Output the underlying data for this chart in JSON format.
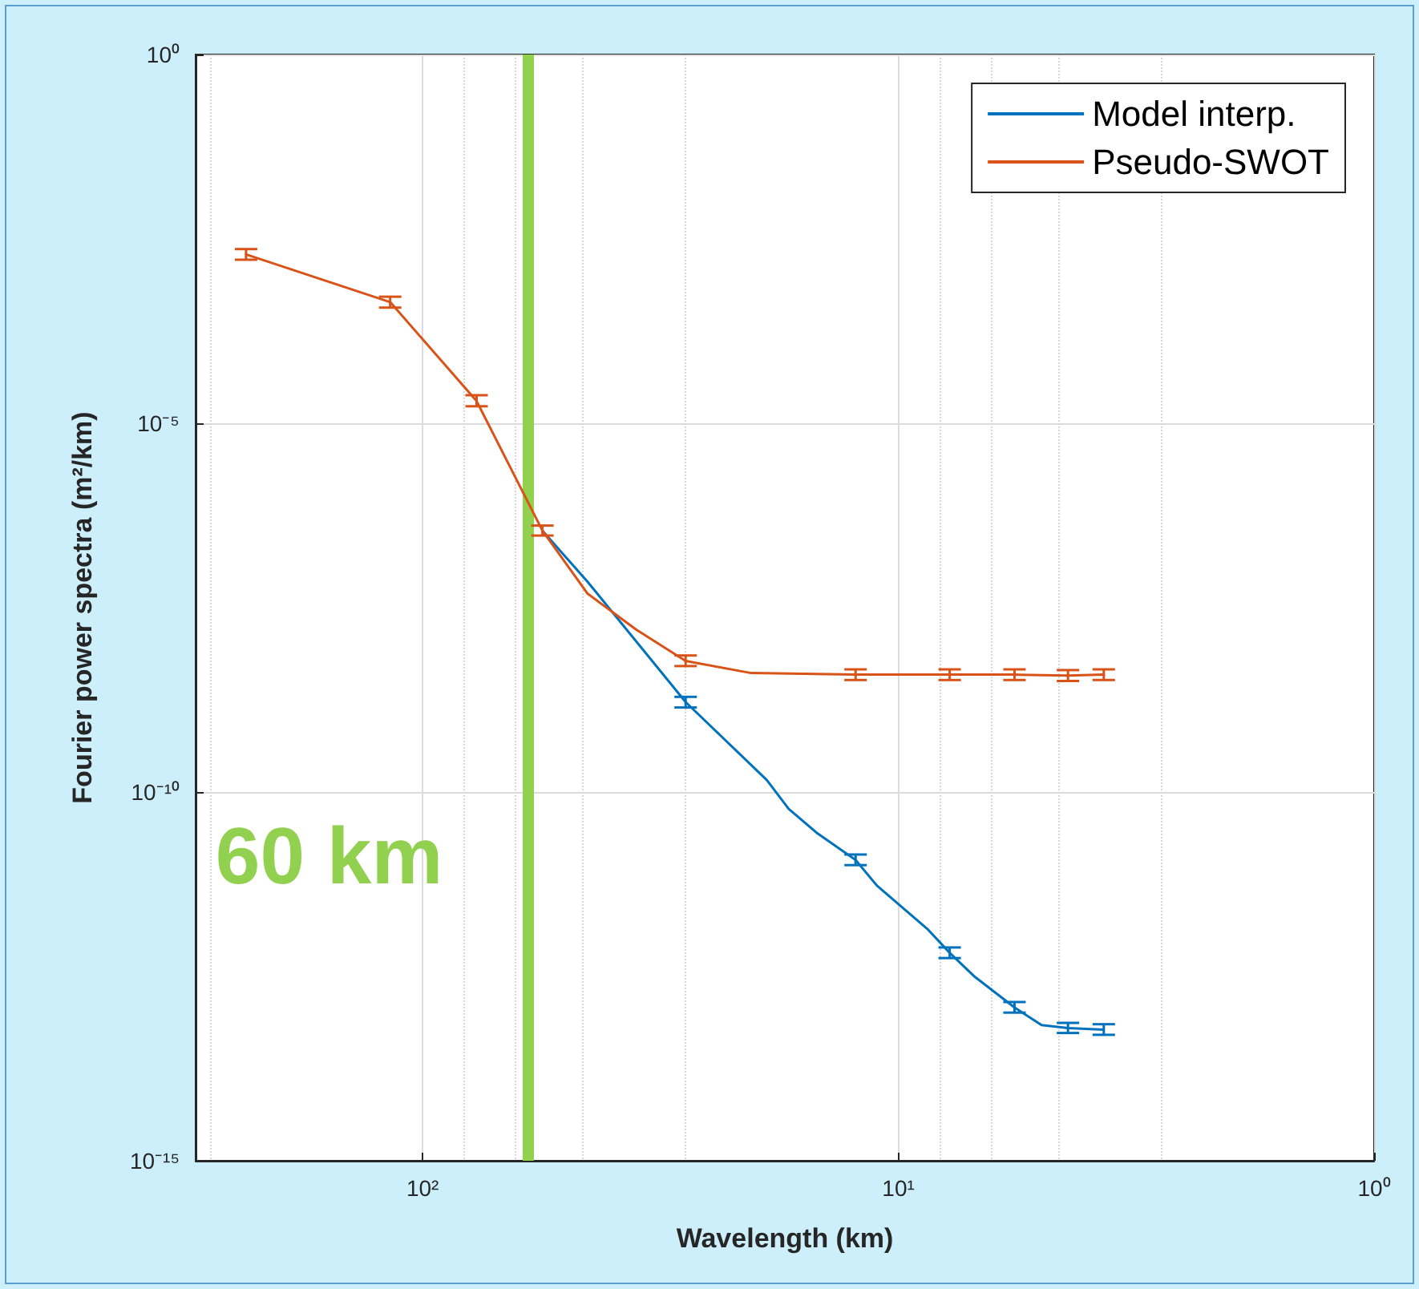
{
  "chart_data": {
    "type": "line",
    "xlabel": "Wavelength (km)",
    "ylabel": "Fourier power spectra (m²/km)",
    "log": "xy",
    "grid": true,
    "legend": "top right",
    "marker": "none",
    "line_style": "solid",
    "xlim": [
      300,
      1
    ],
    "ylim": [
      1e-15,
      1
    ],
    "xticks": [
      {
        "value": 100,
        "label": "10²"
      },
      {
        "value": 10,
        "label": "10¹"
      },
      {
        "value": 1,
        "label": "10⁰"
      }
    ],
    "yticks": [
      {
        "value": 1e-15,
        "label": "10⁻¹⁵"
      },
      {
        "value": 1e-10,
        "label": "10⁻¹⁰"
      },
      {
        "value": 1e-05,
        "label": "10⁻⁵"
      },
      {
        "value": 1,
        "label": "10⁰"
      }
    ],
    "series": [
      {
        "name": "Model interp.",
        "color": "#0072bd",
        "x": [
          56,
          45,
          28,
          18.9,
          17,
          14.8,
          12.3,
          11.1,
          8.7,
          7.8,
          6.9,
          5.7,
          5.0,
          4.4,
          3.7
        ],
        "values": [
          3.5e-07,
          7.1e-08,
          1.66e-09,
          1.45e-10,
          5.9e-11,
          2.75e-11,
          1.2e-11,
          5.4e-12,
          1.4e-12,
          6.6e-13,
          3.1e-13,
          1.2e-13,
          6.9e-14,
          6.3e-14,
          6e-14
        ],
        "errors": [
          null,
          null,
          [
            1.4e-09,
            1.95e-09
          ],
          null,
          null,
          null,
          [
            1.02e-11,
            1.42e-11
          ],
          null,
          null,
          [
            5.6e-13,
            7.8e-13
          ],
          null,
          [
            1.02e-13,
            1.42e-13
          ],
          null,
          [
            5.4e-14,
            7.4e-14
          ],
          [
            5.1e-14,
            7.1e-14
          ]
        ]
      },
      {
        "name": "Pseudo-SWOT",
        "color": "#d95319",
        "x": [
          235,
          117,
          77,
          56,
          45,
          35.6,
          28,
          20.4,
          12.3,
          7.8,
          5.7,
          4.4,
          3.7
        ],
        "values": [
          0.00195,
          0.00044,
          2e-05,
          3.5e-07,
          4.9e-08,
          1.6e-08,
          6e-09,
          4.1e-09,
          3.9e-09,
          3.9e-09,
          3.9e-09,
          3.8e-09,
          3.9e-09
        ],
        "errors": [
          [
            0.00165,
            0.0023
          ],
          [
            0.00037,
            0.00052
          ],
          [
            1.7e-05,
            2.4e-05
          ],
          [
            3e-07,
            4.1e-07
          ],
          null,
          null,
          [
            5.1e-09,
            7.1e-09
          ],
          null,
          [
            3.3e-09,
            4.6e-09
          ],
          [
            3.3e-09,
            4.6e-09
          ],
          [
            3.3e-09,
            4.6e-09
          ],
          [
            3.2e-09,
            4.5e-09
          ],
          [
            3.3e-09,
            4.6e-09
          ]
        ]
      }
    ],
    "ref_lines": [
      {
        "axis": "x",
        "value": 60,
        "label": "60 km",
        "color": "#92d050"
      }
    ]
  }
}
